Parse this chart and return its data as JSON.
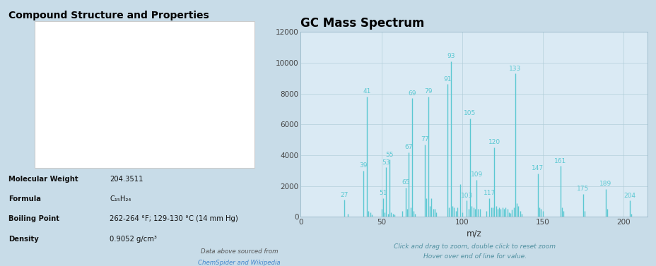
{
  "spectrum_title": "GC Mass Spectrum",
  "left_title": "Compound Structure and Properties",
  "xlabel": "m/z",
  "xlim": [
    0,
    215
  ],
  "ylim": [
    0,
    12000
  ],
  "yticks": [
    0,
    2000,
    4000,
    6000,
    8000,
    10000,
    12000
  ],
  "xticks": [
    0,
    50,
    100,
    150,
    200
  ],
  "background_color": "#c8dce8",
  "plot_bg_color": "#daeaf4",
  "bar_color": "#5bc8d2",
  "grid_color": "#b0ccd8",
  "title_color": "#000000",
  "subtitle_color": "#5090a0",
  "subtitle_line1": "Click and drag to zoom, double click to reset zoom",
  "subtitle_line2": "Hover over end of line for value.",
  "peaks": [
    [
      27,
      1100
    ],
    [
      29,
      200
    ],
    [
      39,
      3000
    ],
    [
      41,
      7800
    ],
    [
      42,
      400
    ],
    [
      43,
      300
    ],
    [
      44,
      150
    ],
    [
      50,
      500
    ],
    [
      51,
      1200
    ],
    [
      52,
      300
    ],
    [
      53,
      3200
    ],
    [
      54,
      200
    ],
    [
      55,
      3700
    ],
    [
      56,
      300
    ],
    [
      57,
      200
    ],
    [
      58,
      150
    ],
    [
      63,
      400
    ],
    [
      65,
      1900
    ],
    [
      66,
      500
    ],
    [
      67,
      4200
    ],
    [
      68,
      600
    ],
    [
      69,
      7700
    ],
    [
      70,
      400
    ],
    [
      71,
      200
    ],
    [
      77,
      4700
    ],
    [
      78,
      1200
    ],
    [
      79,
      7800
    ],
    [
      80,
      700
    ],
    [
      81,
      1200
    ],
    [
      82,
      500
    ],
    [
      83,
      500
    ],
    [
      84,
      300
    ],
    [
      91,
      8600
    ],
    [
      92,
      600
    ],
    [
      93,
      10100
    ],
    [
      94,
      700
    ],
    [
      95,
      600
    ],
    [
      96,
      400
    ],
    [
      97,
      600
    ],
    [
      99,
      2100
    ],
    [
      100,
      300
    ],
    [
      103,
      1050
    ],
    [
      104,
      500
    ],
    [
      105,
      6400
    ],
    [
      106,
      700
    ],
    [
      107,
      600
    ],
    [
      108,
      500
    ],
    [
      109,
      2400
    ],
    [
      110,
      500
    ],
    [
      111,
      500
    ],
    [
      115,
      400
    ],
    [
      117,
      1200
    ],
    [
      118,
      600
    ],
    [
      119,
      600
    ],
    [
      120,
      4500
    ],
    [
      121,
      700
    ],
    [
      122,
      500
    ],
    [
      123,
      600
    ],
    [
      124,
      500
    ],
    [
      125,
      600
    ],
    [
      126,
      500
    ],
    [
      127,
      600
    ],
    [
      128,
      500
    ],
    [
      129,
      300
    ],
    [
      130,
      250
    ],
    [
      131,
      450
    ],
    [
      132,
      600
    ],
    [
      133,
      9300
    ],
    [
      134,
      900
    ],
    [
      135,
      700
    ],
    [
      136,
      400
    ],
    [
      137,
      200
    ],
    [
      147,
      2800
    ],
    [
      148,
      600
    ],
    [
      149,
      500
    ],
    [
      150,
      400
    ],
    [
      161,
      3300
    ],
    [
      162,
      600
    ],
    [
      163,
      400
    ],
    [
      175,
      1500
    ],
    [
      176,
      400
    ],
    [
      189,
      1800
    ],
    [
      190,
      500
    ],
    [
      204,
      1050
    ],
    [
      205,
      200
    ]
  ],
  "labeled_peaks": [
    27,
    39,
    41,
    51,
    53,
    55,
    65,
    67,
    69,
    77,
    79,
    91,
    93,
    103,
    105,
    109,
    117,
    120,
    133,
    147,
    161,
    175,
    189,
    204
  ],
  "mol_weight_label": "Molecular Weight",
  "mol_weight_value": "204.3511",
  "formula_label": "Formula",
  "formula_value": "C₁₅H₂₄",
  "bp_label": "Boiling Point",
  "bp_value": "262-264 °F; 129-130 °C (14 mm Hg)",
  "density_label": "Density",
  "density_value": "0.9052 g/cm³",
  "source_text": "Data above sourced from ",
  "source_link1": "ChemSpider",
  "source_and": " and ",
  "source_link2": "Wikipedia"
}
